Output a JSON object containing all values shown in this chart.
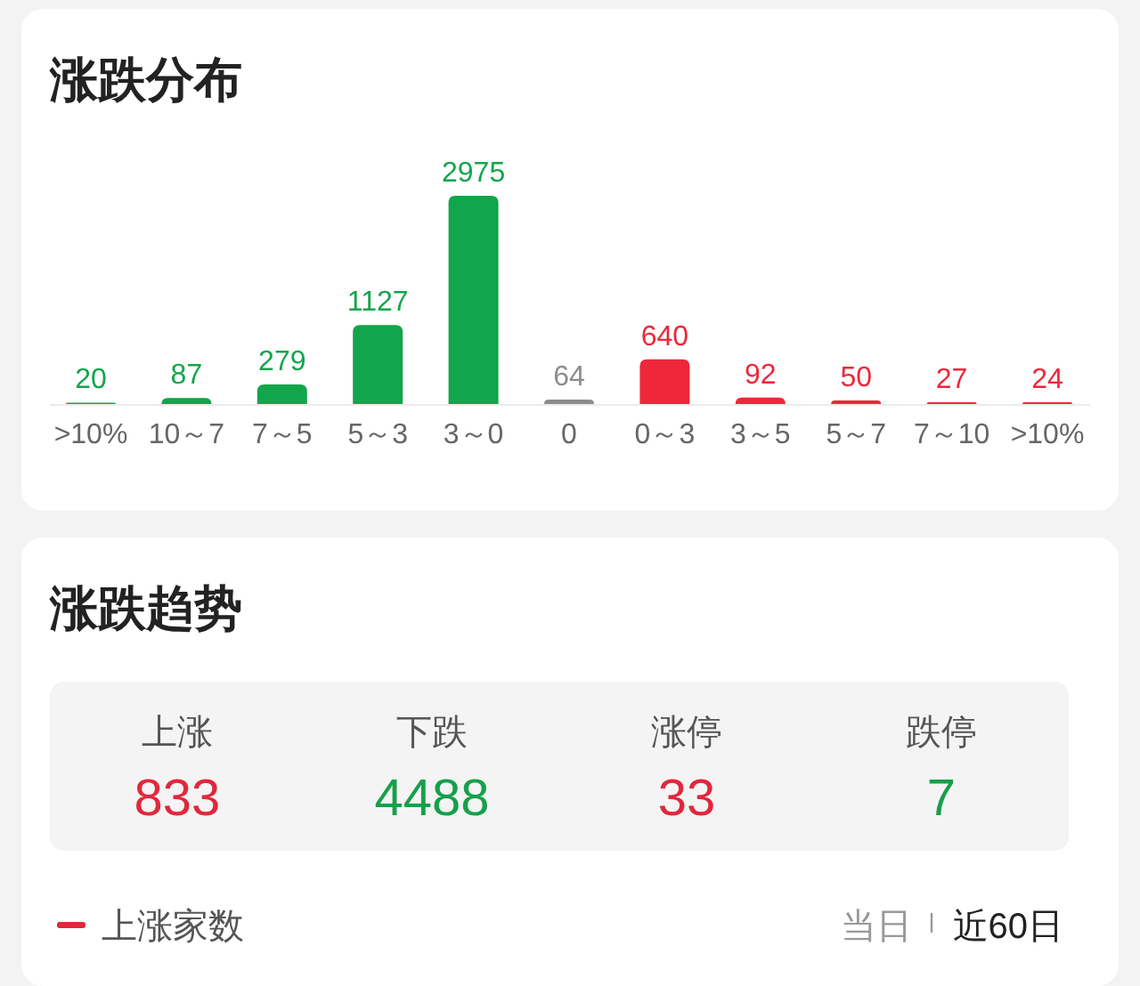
{
  "chart_data": [
    {
      "type": "bar",
      "title": "涨跌分布",
      "categories": [
        ">10%",
        "10～7",
        "7～5",
        "5～3",
        "3～0",
        "0",
        "0～3",
        "3～5",
        "5～7",
        "7～10",
        ">10%"
      ],
      "values": [
        20,
        87,
        279,
        1127,
        2975,
        64,
        640,
        92,
        50,
        27,
        24
      ],
      "colors": [
        "#12a54b",
        "#12a54b",
        "#12a54b",
        "#12a54b",
        "#12a54b",
        "#8c8c8c",
        "#f0263a",
        "#f0263a",
        "#f0263a",
        "#f0263a",
        "#f0263a"
      ],
      "data_labels": true
    },
    {
      "type": "other",
      "title": "涨跌趋势",
      "categories": [
        "上涨",
        "下跌",
        "涨停",
        "跌停"
      ],
      "values": [
        833,
        4488,
        33,
        7
      ],
      "data_labels": true,
      "annotations": [
        "上涨家数",
        "当日",
        "近60日"
      ]
    }
  ]
}
